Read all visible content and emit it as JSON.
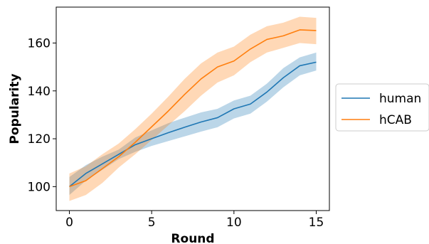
{
  "chart_data": {
    "type": "line",
    "xlabel": "Round",
    "ylabel": "Popularity",
    "xlim": [
      -0.8,
      15.8
    ],
    "ylim": [
      90,
      175
    ],
    "xticks": [
      0,
      5,
      10,
      15
    ],
    "yticks": [
      100,
      120,
      140,
      160
    ],
    "grid": false,
    "legend_position": "right, outside plot",
    "x": [
      0,
      1,
      2,
      3,
      4,
      5,
      6,
      7,
      8,
      9,
      10,
      11,
      12,
      13,
      14,
      15
    ],
    "series": [
      {
        "name": "human",
        "color": "#1f77b4",
        "values": [
          100,
          105.5,
          109.5,
          113.5,
          117.5,
          120,
          122.5,
          124.8,
          127,
          128.8,
          132.5,
          134.5,
          139.5,
          145.5,
          150.5,
          152
        ],
        "lower": [
          96.5,
          102.5,
          107,
          111.5,
          114.5,
          117,
          119,
          121,
          123,
          124.8,
          128.5,
          130.5,
          135.5,
          141.5,
          146.5,
          148.5
        ],
        "upper": [
          104,
          109,
          112.5,
          115.5,
          120.5,
          123.5,
          126.5,
          128.8,
          131,
          132.5,
          136,
          138,
          143,
          149.5,
          154,
          156
        ]
      },
      {
        "name": "hCAB",
        "color": "#ff7f0e",
        "values": [
          100,
          102.5,
          107.5,
          112.5,
          118.5,
          125,
          131.5,
          138.5,
          145,
          150,
          152.5,
          157.5,
          161.5,
          163,
          165.5,
          165.2
        ],
        "lower": [
          94,
          96.5,
          101.5,
          108,
          113.5,
          119.5,
          125.5,
          131.5,
          138,
          143.5,
          146.5,
          152,
          156,
          158,
          160,
          159.5
        ],
        "upper": [
          105.5,
          108.5,
          113.5,
          118,
          124,
          130.5,
          137.5,
          145,
          151.5,
          156,
          158.5,
          163.5,
          167,
          168.5,
          171,
          170.5
        ]
      }
    ]
  }
}
